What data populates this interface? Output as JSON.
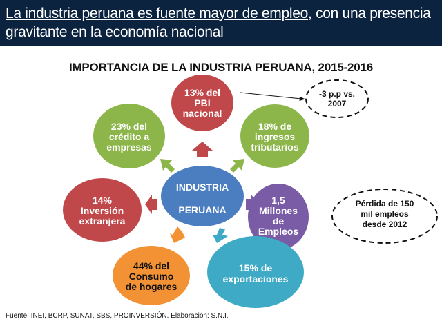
{
  "header": {
    "title_underlined": "La industria peruana es fuente mayor de empleo,",
    "title_rest": " con una presencia gravitante en la economía nacional",
    "background_color": "#0c2340"
  },
  "subtitle": "IMPORTANCIA DE LA INDUSTRIA PERUANA, 2015-2016",
  "center": {
    "lines": [
      "INDUSTRIA",
      "PERUANA"
    ],
    "color": "#4a7ec0"
  },
  "nodes": [
    {
      "id": "pbi",
      "lines": [
        "13% del",
        "PBI",
        "nacional"
      ],
      "color": "#c0474a"
    },
    {
      "id": "tributarios",
      "lines": [
        "18% de",
        "ingresos",
        "tributarios"
      ],
      "color": "#8cb64a"
    },
    {
      "id": "empleos",
      "lines": [
        "1,5",
        "Millones",
        "de",
        "Empleos"
      ],
      "color": "#7a5ba6"
    },
    {
      "id": "exportaciones",
      "lines": [
        "15% de",
        "exportaciones"
      ],
      "color": "#3eaac6"
    },
    {
      "id": "consumo",
      "lines": [
        "44%  del",
        "Consumo",
        "de hogares"
      ],
      "color": "#f39234"
    },
    {
      "id": "inversion",
      "lines": [
        "14%",
        "Inversión",
        "extranjera"
      ],
      "color": "#c0474a"
    },
    {
      "id": "credito",
      "lines": [
        "23% del",
        "crédito a",
        "empresas"
      ],
      "color": "#8cb64a"
    }
  ],
  "notes": [
    {
      "id": "pbi-note",
      "lines": [
        "-3 p.p vs.",
        "2007"
      ]
    },
    {
      "id": "empleo-note",
      "lines": [
        "Pérdida de 150",
        "mil empleos",
        "desde 2012"
      ]
    }
  ],
  "footer": "Fuente: INEI, BCRP,  SUNAT,  SBS, PROINVERSIÓN. Elaboración: S.N.I."
}
